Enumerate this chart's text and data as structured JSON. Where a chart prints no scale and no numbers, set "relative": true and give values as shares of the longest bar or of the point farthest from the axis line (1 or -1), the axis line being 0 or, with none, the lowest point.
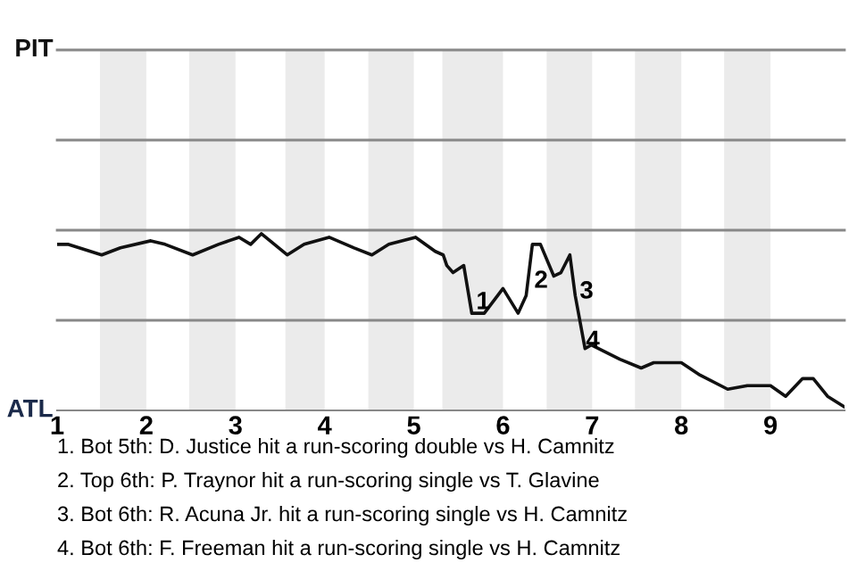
{
  "chart_data": {
    "type": "line",
    "relative": true,
    "x": [
      1.0,
      1.12,
      1.5,
      1.71,
      2.05,
      2.21,
      2.52,
      2.81,
      3.04,
      3.17,
      3.29,
      3.58,
      3.77,
      4.05,
      4.33,
      4.53,
      4.72,
      5.02,
      5.24,
      5.33,
      5.37,
      5.44,
      5.56,
      5.65,
      5.79,
      6.0,
      6.17,
      6.26,
      6.33,
      6.42,
      6.57,
      6.65,
      6.75,
      6.81,
      6.92,
      6.99,
      7.31,
      7.55,
      7.69,
      8.0,
      8.21,
      8.52,
      8.74,
      9.0,
      9.17,
      9.36,
      9.48,
      9.64,
      9.83
    ],
    "series": [
      {
        "color": "#111111",
        "values": [
          0.94,
          0.94,
          0.88,
          0.92,
          0.96,
          0.94,
          0.88,
          0.94,
          0.98,
          0.94,
          1,
          0.88,
          0.94,
          0.98,
          0.92,
          0.88,
          0.94,
          0.98,
          0.9,
          0.88,
          0.82,
          0.78,
          0.82,
          0.55,
          0.55,
          0.69,
          0.55,
          0.65,
          0.94,
          0.94,
          0.76,
          0.78,
          0.88,
          0.65,
          0.35,
          0.37,
          0.29,
          0.24,
          0.27,
          0.27,
          0.2,
          0.12,
          0.14,
          0.14,
          0.08,
          0.18,
          0.18,
          0.08,
          0.02
        ]
      }
    ],
    "xlim": [
      1,
      9.83
    ],
    "xticks": [
      1,
      2,
      3,
      4,
      5,
      6,
      7,
      8,
      9
    ],
    "ylabel": "ATL",
    "ref_lines": [
      {
        "axis": "y",
        "value": 0.51,
        "label": null,
        "color": "#888888"
      },
      {
        "axis": "y",
        "value": 1.02,
        "label": null,
        "color": "#888888"
      },
      {
        "axis": "y",
        "value": 1.53,
        "label": null,
        "color": "#888888"
      },
      {
        "axis": "y",
        "value": 2.04,
        "label": "PIT",
        "color": "#888888"
      }
    ],
    "marker": "none",
    "line_style": "solid",
    "bands": [
      {
        "axis": "x",
        "from": 1.48,
        "to": 2,
        "color": "#ebebeb"
      },
      {
        "axis": "x",
        "from": 2.48,
        "to": 3,
        "color": "#ebebeb"
      },
      {
        "axis": "x",
        "from": 3.56,
        "to": 4,
        "color": "#ebebeb"
      },
      {
        "axis": "x",
        "from": 4.49,
        "to": 5,
        "color": "#ebebeb"
      },
      {
        "axis": "x",
        "from": 5.32,
        "to": 6,
        "color": "#ebebeb"
      },
      {
        "axis": "x",
        "from": 6.49,
        "to": 7,
        "color": "#ebebeb"
      },
      {
        "axis": "x",
        "from": 7.48,
        "to": 8,
        "color": "#ebebeb"
      },
      {
        "axis": "x",
        "from": 8.48,
        "to": 9,
        "color": "#ebebeb"
      }
    ],
    "annotations": [
      {
        "text": "1",
        "x": 5.7,
        "y": 0.61
      },
      {
        "text": "2",
        "x": 6.35,
        "y": 0.73
      },
      {
        "text": "3",
        "x": 6.86,
        "y": 0.67
      },
      {
        "text": "4",
        "x": 6.93,
        "y": 0.39
      },
      "1. Bot 5th: D. Justice hit a run-scoring double vs H. Camnitz",
      "2. Top 6th: P. Traynor hit a run-scoring single vs T. Glavine",
      "3. Bot 6th: R. Acuna Jr. hit a run-scoring single vs H. Camnitz",
      "4. Bot 6th: F. Freeman hit a run-scoring single vs H. Camnitz"
    ]
  }
}
